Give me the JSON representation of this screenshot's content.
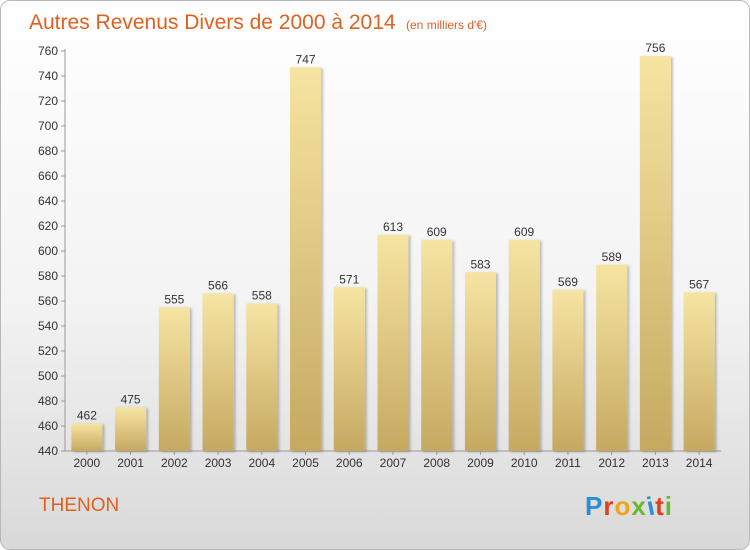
{
  "header": {
    "title": "Autres Revenus Divers de 2000 à 2014",
    "unit": "(en milliers d'€)"
  },
  "footer": {
    "commune": "THENON",
    "logo_text": "Proxiti"
  },
  "colors": {
    "bar_light": "#f6e4a2",
    "bar_dark": "#c6a960",
    "accent": "#e0601e",
    "logo_letters": [
      "#2b8fd6",
      "#e0401e",
      "#f1a31a",
      "#6ab82e",
      "#2b8fd6",
      "#e0401e",
      "#6ab82e"
    ]
  },
  "chart_data": {
    "type": "bar",
    "title": "Autres Revenus Divers de 2000 à 2014",
    "subtitle": "(en milliers d'€)",
    "xlabel": "",
    "ylabel": "",
    "categories": [
      "2000",
      "2001",
      "2002",
      "2003",
      "2004",
      "2005",
      "2006",
      "2007",
      "2008",
      "2009",
      "2010",
      "2011",
      "2012",
      "2013",
      "2014"
    ],
    "values": [
      462,
      475,
      555,
      566,
      558,
      747,
      571,
      613,
      609,
      583,
      609,
      569,
      589,
      756,
      567
    ],
    "ylim": [
      440,
      760
    ],
    "yticks": [
      440,
      460,
      480,
      500,
      520,
      540,
      560,
      580,
      600,
      620,
      640,
      660,
      680,
      700,
      720,
      740,
      760
    ],
    "grid": false,
    "legend": "none"
  }
}
